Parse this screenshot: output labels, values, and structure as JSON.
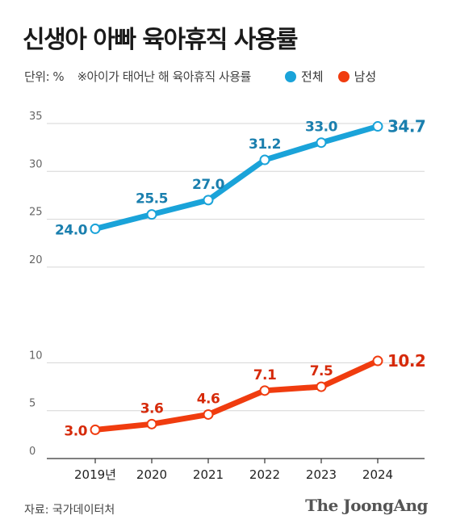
{
  "title": "신생아 아빠 육아휴직 사용률",
  "unit_label": "단위: %",
  "note": "※아이가 태어난 해 육아휴직 사용률",
  "legend": [
    {
      "label": "전체",
      "color": "#1aa3d9"
    },
    {
      "label": "남성",
      "color": "#f03c0f"
    }
  ],
  "source": "자료: 국가데이터처",
  "brand": "The JoongAng",
  "chart_data": {
    "type": "line",
    "categories": [
      "2019년",
      "2020",
      "2021",
      "2022",
      "2023",
      "2024"
    ],
    "yticks": [
      0,
      5,
      10,
      20,
      25,
      30,
      35
    ],
    "ylim": [
      0,
      35
    ],
    "grid": true,
    "series": [
      {
        "name": "전체",
        "color": "#1aa3d9",
        "label_color": "#1a7fae",
        "values": [
          24.0,
          25.5,
          27.0,
          31.2,
          33.0,
          34.7
        ],
        "labels": [
          "24.0",
          "25.5",
          "27.0",
          "31.2",
          "33.0",
          "34.7"
        ]
      },
      {
        "name": "남성",
        "color": "#f03c0f",
        "label_color": "#d62a0a",
        "values": [
          3.0,
          3.6,
          4.6,
          7.1,
          7.5,
          10.2
        ],
        "labels": [
          "3.0",
          "3.6",
          "4.6",
          "7.1",
          "7.5",
          "10.2"
        ]
      }
    ]
  }
}
